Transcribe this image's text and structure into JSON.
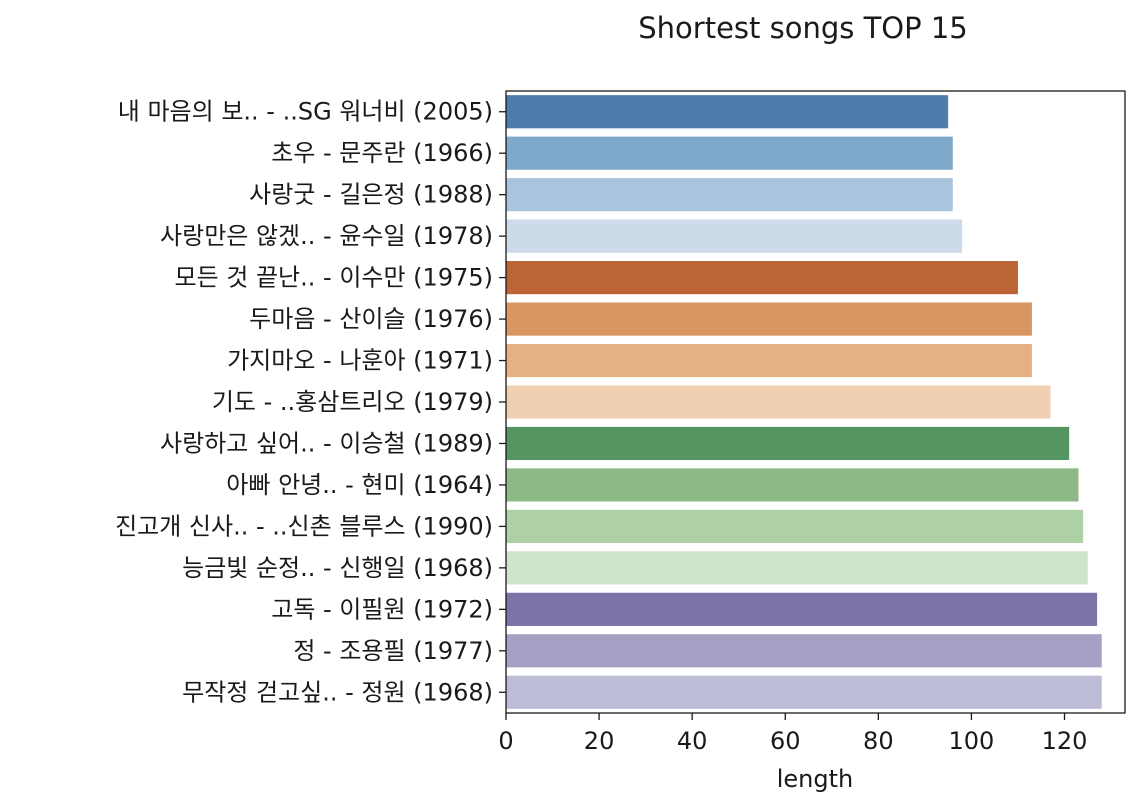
{
  "chart_data": {
    "type": "bar",
    "orientation": "horizontal",
    "title": "Shortest songs TOP 15",
    "xlabel": "length",
    "ylabel": "",
    "xlim": [
      0,
      133
    ],
    "xticks": [
      0,
      20,
      40,
      60,
      80,
      100,
      120
    ],
    "grid": false,
    "categories": [
      "내 마음의 보.. - ..SG 워너비 (2005)",
      "초우 - 문주란 (1966)",
      "사랑굿 - 길은정 (1988)",
      "사랑만은 않겠.. - 윤수일 (1978)",
      "모든 것 끝난.. - 이수만 (1975)",
      "두마음 - 산이슬 (1976)",
      "가지마오 - 나훈아 (1971)",
      "기도 - ..홍삼트리오 (1979)",
      "사랑하고 싶어.. - 이승철 (1989)",
      "아빠 안녕.. - 현미 (1964)",
      "진고개 신사.. - ..신촌 블루스 (1990)",
      "능금빛 순정.. - 신행일 (1968)",
      "고독 - 이필원 (1972)",
      "정 - 조용필 (1977)",
      "무작정 걷고싶.. - 정원 (1968)"
    ],
    "values": [
      95,
      96,
      96,
      98,
      110,
      113,
      113,
      117,
      121,
      123,
      124,
      125,
      127,
      128,
      128
    ],
    "colors": [
      "#4e7dab",
      "#7fa9cb",
      "#a9c4dc",
      "#ccdaea",
      "#bd6437",
      "#d99660",
      "#e5b184",
      "#efd0b0",
      "#559562",
      "#8cb985",
      "#add0a4",
      "#cfe4c9",
      "#7a74a7",
      "#a5a0c4",
      "#bdbcd7"
    ]
  }
}
